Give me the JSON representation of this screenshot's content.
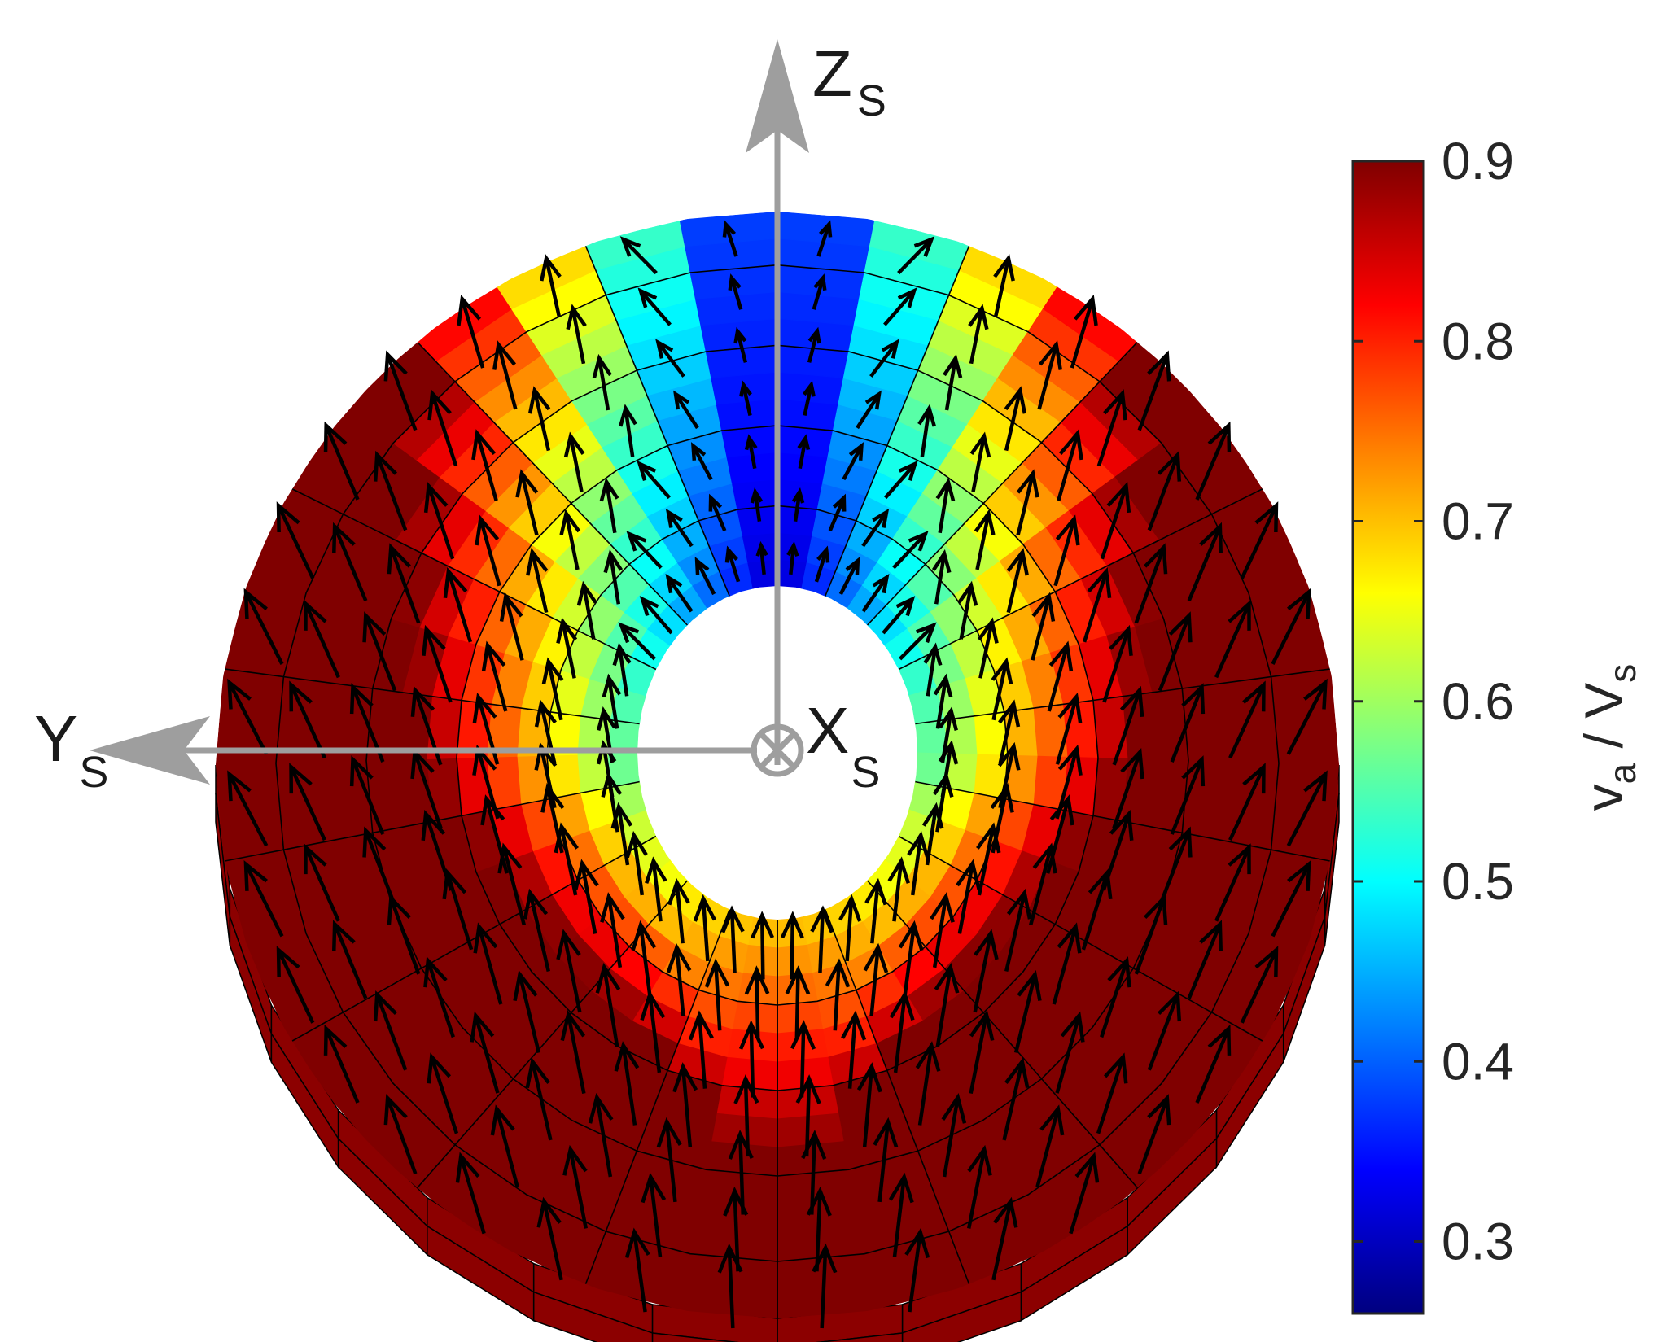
{
  "chart_data": {
    "type": "heatmap",
    "title": "",
    "axes": {
      "z_label": "Z",
      "z_sub": "S",
      "y_label": "Y",
      "y_sub": "S",
      "x_label": "X",
      "x_sub": "S",
      "x_symbol": "⊗"
    },
    "colorbar": {
      "label_main_1": "v",
      "label_sub_1": "a",
      "label_sep": " / ",
      "label_main_2": "V",
      "label_sub_2": "s",
      "range": [
        0.26,
        0.9
      ],
      "ticks": [
        0.3,
        0.4,
        0.5,
        0.6,
        0.7,
        0.8,
        0.9
      ],
      "tick_labels": [
        "0.3",
        "0.4",
        "0.5",
        "0.6",
        "0.7",
        "0.8",
        "0.9"
      ],
      "colormap": "jet"
    },
    "field": {
      "quantity": "v_a / V_s",
      "minimum": 0.27,
      "maximum": 0.9,
      "vectors": "black arrows showing in-plane velocity direction"
    },
    "colors": {
      "axis_arrows": "#9e9e9e",
      "outline": "#000000"
    }
  }
}
